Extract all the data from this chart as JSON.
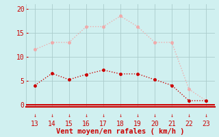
{
  "x": [
    13,
    14,
    15,
    16,
    17,
    18,
    19,
    20,
    21,
    22,
    23
  ],
  "wind_avg": [
    4.0,
    6.5,
    5.2,
    6.3,
    7.2,
    6.4,
    6.4,
    5.2,
    4.0,
    0.8,
    0.8
  ],
  "wind_gust": [
    11.5,
    13.0,
    13.0,
    16.3,
    16.3,
    18.5,
    16.3,
    13.0,
    13.0,
    3.2,
    0.8
  ],
  "avg_color": "#cc0000",
  "gust_color": "#f0aaaa",
  "bg_color": "#d0f0f0",
  "grid_color": "#aacccc",
  "xlabel": "Vent moyen/en rafales ( km/h )",
  "xlabel_color": "#cc0000",
  "tick_color": "#cc0000",
  "ylim": [
    -0.5,
    21
  ],
  "yticks": [
    0,
    5,
    10,
    15,
    20
  ],
  "xlim": [
    12.5,
    23.5
  ],
  "xticks": [
    13,
    14,
    15,
    16,
    17,
    18,
    19,
    20,
    21,
    22,
    23
  ]
}
